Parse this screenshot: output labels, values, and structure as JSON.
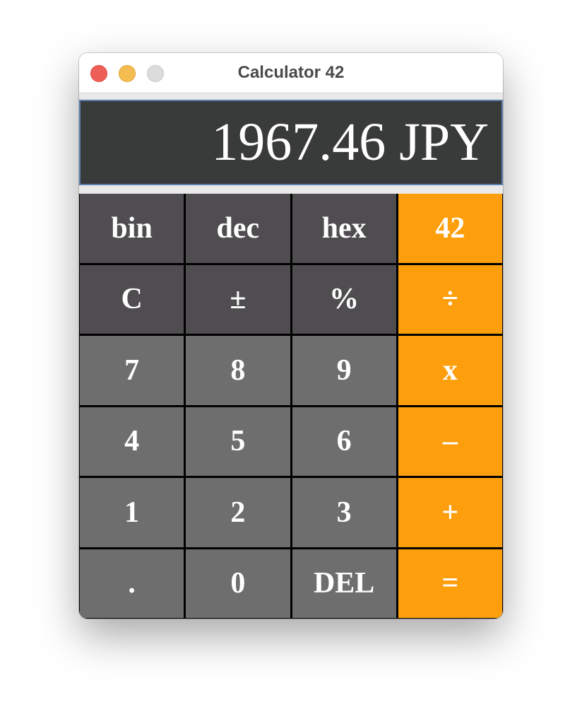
{
  "window": {
    "title": "Calculator 42"
  },
  "display": {
    "value": "1967.46 JPY"
  },
  "keypad": {
    "rows": [
      [
        {
          "label": "bin",
          "name": "bin-button",
          "kind": "func"
        },
        {
          "label": "dec",
          "name": "dec-button",
          "kind": "func"
        },
        {
          "label": "hex",
          "name": "hex-button",
          "kind": "func"
        },
        {
          "label": "42",
          "name": "forty-two-button",
          "kind": "op"
        }
      ],
      [
        {
          "label": "C",
          "name": "clear-button",
          "kind": "func"
        },
        {
          "label": "±",
          "name": "plus-minus-button",
          "kind": "func"
        },
        {
          "label": "%",
          "name": "percent-button",
          "kind": "func"
        },
        {
          "label": "÷",
          "name": "divide-button",
          "kind": "op"
        }
      ],
      [
        {
          "label": "7",
          "name": "digit-7-button",
          "kind": "num"
        },
        {
          "label": "8",
          "name": "digit-8-button",
          "kind": "num"
        },
        {
          "label": "9",
          "name": "digit-9-button",
          "kind": "num"
        },
        {
          "label": "x",
          "name": "multiply-button",
          "kind": "op"
        }
      ],
      [
        {
          "label": "4",
          "name": "digit-4-button",
          "kind": "num"
        },
        {
          "label": "5",
          "name": "digit-5-button",
          "kind": "num"
        },
        {
          "label": "6",
          "name": "digit-6-button",
          "kind": "num"
        },
        {
          "label": "–",
          "name": "subtract-button",
          "kind": "op"
        }
      ],
      [
        {
          "label": "1",
          "name": "digit-1-button",
          "kind": "num"
        },
        {
          "label": "2",
          "name": "digit-2-button",
          "kind": "num"
        },
        {
          "label": "3",
          "name": "digit-3-button",
          "kind": "num"
        },
        {
          "label": "+",
          "name": "add-button",
          "kind": "op"
        }
      ],
      [
        {
          "label": ".",
          "name": "decimal-point-button",
          "kind": "num"
        },
        {
          "label": "0",
          "name": "digit-0-button",
          "kind": "num"
        },
        {
          "label": "DEL",
          "name": "delete-button",
          "kind": "num"
        },
        {
          "label": "=",
          "name": "equals-button",
          "kind": "op"
        }
      ]
    ]
  },
  "colors": {
    "function_key": "#4f4d50",
    "number_key": "#6e6e6e",
    "operator_key": "#fd9f0c",
    "display_bg": "#393b3a",
    "close": "#ee5f57",
    "minimize": "#f5bd4f",
    "maximize_inactive": "#dcdcdc"
  }
}
